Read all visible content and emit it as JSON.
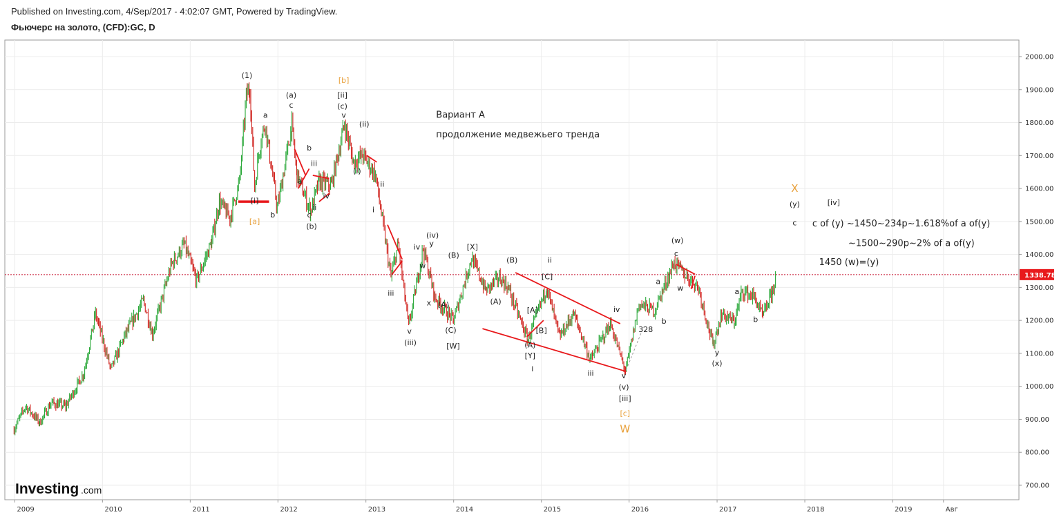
{
  "header": {
    "published": "Published on Investing.com, 4/Sep/2017 - 4:02:07 GMT, Powered by TradingView.",
    "symbol": "Фьючерс на золото, (CFD):GC, D"
  },
  "logo": {
    "main": "Investing",
    "suffix": ".com"
  },
  "colors": {
    "up": "#2aa839",
    "down": "#d0231e",
    "line": "#e8191c",
    "price_line": "#c8102e",
    "orange": "#e8a03a"
  },
  "chart_data": {
    "type": "line",
    "ylim": [
      650,
      2050
    ],
    "y_ticks": [
      "2000.00",
      "1900.00",
      "1800.00",
      "1700.00",
      "1600.00",
      "1500.00",
      "1400.00",
      "1300.00",
      "1200.00",
      "1100.00",
      "1000.00",
      "900.00",
      "800.00",
      "700.00"
    ],
    "x_ticks": [
      "2009",
      "2010",
      "2011",
      "2012",
      "2013",
      "2014",
      "2015",
      "2016",
      "2017",
      "2018",
      "2019",
      "Авг"
    ],
    "last_price": "1338.78",
    "series": [
      {
        "x": [
          "2008-12-29",
          "2009-02-15",
          "2009-04-15",
          "2009-06-01",
          "2009-08-01",
          "2009-10-15",
          "2009-12-03",
          "2010-02-05",
          "2010-04-01",
          "2010-06-20",
          "2010-07-28",
          "2010-10-15",
          "2010-12-07",
          "2011-01-28",
          "2011-04-01",
          "2011-05-02",
          "2011-06-15",
          "2011-07-25",
          "2011-08-22",
          "2011-09-06",
          "2011-09-26",
          "2011-10-15",
          "2011-11-08",
          "2011-12-29",
          "2012-02-28",
          "2012-03-20",
          "2012-05-16",
          "2012-06-20",
          "2012-08-10",
          "2012-10-04",
          "2012-11-10",
          "2012-12-20",
          "2013-02-10",
          "2013-04-15",
          "2013-05-15",
          "2013-06-28",
          "2013-08-27",
          "2013-10-15",
          "2013-12-31",
          "2014-03-17",
          "2014-05-15",
          "2014-07-10",
          "2014-08-15",
          "2014-11-06",
          "2015-01-22",
          "2015-03-17",
          "2015-05-15",
          "2015-07-24",
          "2015-10-15",
          "2015-12-17",
          "2016-02-11",
          "2016-04-15",
          "2016-07-06",
          "2016-08-20",
          "2016-10-15",
          "2016-12-15",
          "2017-01-20",
          "2017-03-14",
          "2017-04-15",
          "2017-06-06",
          "2017-07-10",
          "2017-08-20",
          "2017-09-04"
        ],
        "y": [
          870,
          940,
          890,
          950,
          940,
          1040,
          1220,
          1050,
          1150,
          1260,
          1160,
          1370,
          1430,
          1320,
          1440,
          1560,
          1510,
          1620,
          1880,
          1905,
          1600,
          1720,
          1800,
          1540,
          1790,
          1640,
          1530,
          1620,
          1610,
          1795,
          1680,
          1700,
          1640,
          1330,
          1430,
          1180,
          1420,
          1270,
          1200,
          1390,
          1290,
          1330,
          1300,
          1140,
          1300,
          1150,
          1220,
          1080,
          1190,
          1045,
          1250,
          1230,
          1375,
          1340,
          1300,
          1125,
          1220,
          1195,
          1290,
          1270,
          1210,
          1290,
          1338.78
        ]
      }
    ]
  },
  "annotations": [
    {
      "text": "(1)",
      "x": "2011-08-25",
      "y": 1935,
      "c": "n"
    },
    {
      "text": "a",
      "x": "2011-11-10",
      "y": 1815,
      "c": "n"
    },
    {
      "text": "[i]",
      "x": "2011-09-26",
      "y": 1555,
      "c": "n"
    },
    {
      "text": "[a]",
      "x": "2011-09-26",
      "y": 1492,
      "c": "o"
    },
    {
      "text": "b",
      "x": "2011-12-10",
      "y": 1512,
      "c": "n"
    },
    {
      "text": "(a)",
      "x": "2012-02-25",
      "y": 1875,
      "c": "n"
    },
    {
      "text": "c",
      "x": "2012-02-25",
      "y": 1845,
      "c": "n"
    },
    {
      "text": "b",
      "x": "2012-05-10",
      "y": 1715,
      "c": "n"
    },
    {
      "text": "iii",
      "x": "2012-05-30",
      "y": 1668,
      "c": "n"
    },
    {
      "text": "a",
      "x": "2012-04-01",
      "y": 1615,
      "c": "n"
    },
    {
      "text": "iv",
      "x": "2012-07-20",
      "y": 1570,
      "c": "n"
    },
    {
      "text": "ii",
      "x": "2012-06-01",
      "y": 1535,
      "c": "n"
    },
    {
      "text": "c",
      "x": "2012-05-10",
      "y": 1512,
      "c": "n"
    },
    {
      "text": "(b)",
      "x": "2012-05-20",
      "y": 1478,
      "c": "n"
    },
    {
      "text": "[b]",
      "x": "2012-10-01",
      "y": 1920,
      "c": "o"
    },
    {
      "text": "[ii]",
      "x": "2012-09-25",
      "y": 1875,
      "c": "n"
    },
    {
      "text": "(c)",
      "x": "2012-09-25",
      "y": 1842,
      "c": "n"
    },
    {
      "text": "v",
      "x": "2012-10-01",
      "y": 1815,
      "c": "n"
    },
    {
      "text": "(ii)",
      "x": "2012-12-25",
      "y": 1788,
      "c": "n"
    },
    {
      "text": "(i)",
      "x": "2012-11-25",
      "y": 1645,
      "c": "n"
    },
    {
      "text": "ii",
      "x": "2013-03-10",
      "y": 1605,
      "c": "n"
    },
    {
      "text": "i",
      "x": "2013-02-01",
      "y": 1528,
      "c": "n"
    },
    {
      "text": "iv",
      "x": "2013-08-01",
      "y": 1415,
      "c": "n"
    },
    {
      "text": "(iv)",
      "x": "2013-10-05",
      "y": 1450,
      "c": "n"
    },
    {
      "text": "y",
      "x": "2013-10-01",
      "y": 1425,
      "c": "n"
    },
    {
      "text": "w",
      "x": "2013-08-25",
      "y": 1358,
      "c": "n"
    },
    {
      "text": "iii",
      "x": "2013-04-15",
      "y": 1275,
      "c": "n"
    },
    {
      "text": "x",
      "x": "2013-09-20",
      "y": 1245,
      "c": "n"
    },
    {
      "text": "v",
      "x": "2013-07-01",
      "y": 1160,
      "c": "n"
    },
    {
      "text": "(iii)",
      "x": "2013-07-05",
      "y": 1125,
      "c": "n"
    },
    {
      "text": "(B)",
      "x": "2014-01-01",
      "y": 1390,
      "c": "n"
    },
    {
      "text": "(A)",
      "x": "2013-11-20",
      "y": 1240,
      "c": "n"
    },
    {
      "text": "(C)",
      "x": "2013-12-20",
      "y": 1163,
      "c": "n"
    },
    {
      "text": "[W]",
      "x": "2013-12-30",
      "y": 1115,
      "c": "n"
    },
    {
      "text": "[X]",
      "x": "2014-03-20",
      "y": 1415,
      "c": "n"
    },
    {
      "text": "(A)",
      "x": "2014-06-25",
      "y": 1250,
      "c": "n"
    },
    {
      "text": "(B)",
      "x": "2014-09-01",
      "y": 1375,
      "c": "n"
    },
    {
      "text": "ii",
      "x": "2015-02-05",
      "y": 1375,
      "c": "n"
    },
    {
      "text": "[C]",
      "x": "2015-01-25",
      "y": 1325,
      "c": "n"
    },
    {
      "text": "[A]",
      "x": "2014-11-25",
      "y": 1223,
      "c": "n"
    },
    {
      "text": "[B]",
      "x": "2015-01-01",
      "y": 1162,
      "c": "n"
    },
    {
      "text": "(A)",
      "x": "2014-11-15",
      "y": 1118,
      "c": "n"
    },
    {
      "text": "[Y]",
      "x": "2014-11-15",
      "y": 1085,
      "c": "n"
    },
    {
      "text": "i",
      "x": "2014-11-25",
      "y": 1045,
      "c": "n"
    },
    {
      "text": "iii",
      "x": "2015-07-25",
      "y": 1032,
      "c": "n"
    },
    {
      "text": "iv",
      "x": "2015-11-10",
      "y": 1225,
      "c": "n"
    },
    {
      "text": "v",
      "x": "2015-12-10",
      "y": 1025,
      "c": "n"
    },
    {
      "text": "(v)",
      "x": "2015-12-10",
      "y": 990,
      "c": "n"
    },
    {
      "text": "[iii]",
      "x": "2015-12-15",
      "y": 955,
      "c": "n"
    },
    {
      "text": "[c]",
      "x": "2015-12-15",
      "y": 910,
      "c": "o"
    },
    {
      "text": "W",
      "x": "2015-12-15",
      "y": 860,
      "c": "big"
    },
    {
      "text": "328",
      "x": "2016-03-10",
      "y": 1165,
      "c": "n"
    },
    {
      "text": "a",
      "x": "2016-05-01",
      "y": 1310,
      "c": "n"
    },
    {
      "text": "b",
      "x": "2016-05-25",
      "y": 1190,
      "c": "n"
    },
    {
      "text": "(w)",
      "x": "2016-07-20",
      "y": 1435,
      "c": "n"
    },
    {
      "text": "c",
      "x": "2016-07-15",
      "y": 1395,
      "c": "n"
    },
    {
      "text": "w",
      "x": "2016-08-01",
      "y": 1290,
      "c": "n"
    },
    {
      "text": "y",
      "x": "2017-01-01",
      "y": 1095,
      "c": "n"
    },
    {
      "text": "(x)",
      "x": "2017-01-01",
      "y": 1062,
      "c": "n"
    },
    {
      "text": "a",
      "x": "2017-03-25",
      "y": 1280,
      "c": "n"
    },
    {
      "text": "b",
      "x": "2017-06-10",
      "y": 1195,
      "c": "n"
    },
    {
      "text": "X",
      "x": "2017-11-20",
      "y": 1590,
      "c": "big"
    },
    {
      "text": "(y)",
      "x": "2017-11-20",
      "y": 1545,
      "c": "n"
    },
    {
      "text": "c",
      "x": "2017-11-20",
      "y": 1488,
      "c": "n"
    },
    {
      "text": "[iv]",
      "x": "2018-05-01",
      "y": 1550,
      "c": "n"
    }
  ],
  "notes": [
    {
      "text": "Вариант А",
      "x": "2013-10-20",
      "y": 1815
    },
    {
      "text": "продолжение медвежьего тренда",
      "x": "2013-10-20",
      "y": 1755
    },
    {
      "text": "c of (y) ~1450~234p~1.618%of a of(y)",
      "x": "2018-02-01",
      "y": 1485
    },
    {
      "text": "~1500~290p~2% of a of(y)",
      "x": "2018-07-01",
      "y": 1425
    },
    {
      "text": "1450  (w)=(y)",
      "x": "2018-03-01",
      "y": 1368
    }
  ],
  "trend_lines": [
    [
      [
        "2011-07-20",
        1560
      ],
      [
        "2011-11-25",
        1560
      ]
    ],
    [
      [
        "2012-03-10",
        1720
      ],
      [
        "2012-04-25",
        1640
      ]
    ],
    [
      [
        "2012-03-25",
        1600
      ],
      [
        "2012-05-10",
        1660
      ]
    ],
    [
      [
        "2012-05-25",
        1640
      ],
      [
        "2012-08-01",
        1630
      ]
    ],
    [
      [
        "2012-06-20",
        1560
      ],
      [
        "2012-08-01",
        1585
      ]
    ],
    [
      [
        "2013-01-05",
        1700
      ],
      [
        "2013-02-15",
        1680
      ]
    ],
    [
      [
        "2013-04-01",
        1490
      ],
      [
        "2013-06-01",
        1385
      ]
    ],
    [
      [
        "2013-04-20",
        1340
      ],
      [
        "2013-06-01",
        1380
      ]
    ],
    [
      [
        "2014-05-01",
        1175
      ],
      [
        "2015-12-20",
        1045
      ]
    ],
    [
      [
        "2014-09-15",
        1345
      ],
      [
        "2015-11-25",
        1190
      ]
    ],
    [
      [
        "2014-11-01",
        1150
      ],
      [
        "2015-01-10",
        1200
      ]
    ],
    [
      [
        "2016-07-15",
        1370
      ],
      [
        "2016-10-01",
        1340
      ]
    ],
    [
      [
        "2016-09-15",
        1295
      ],
      [
        "2016-10-01",
        1335
      ]
    ]
  ],
  "dashed_lines": [
    [
      [
        "2015-12-20",
        1050
      ],
      [
        "2016-03-01",
        1180
      ]
    ]
  ]
}
